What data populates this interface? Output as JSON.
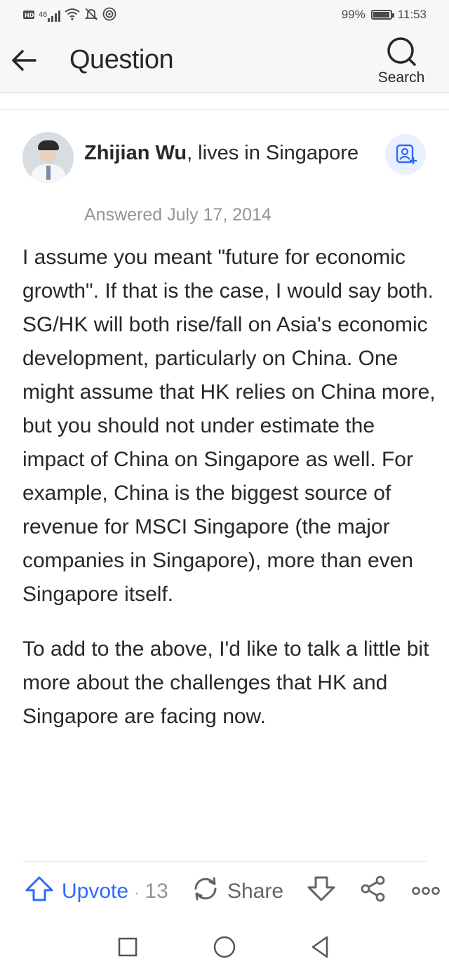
{
  "status_bar": {
    "network": "46",
    "battery_text": "99%",
    "battery_level": 0.99,
    "time": "11:53"
  },
  "header": {
    "title": "Question",
    "search_label": "Search"
  },
  "answer": {
    "author_name": "Zhijian Wu",
    "author_credential": ", lives in Singapore",
    "answered": "Answered July 17, 2014",
    "paragraphs": [
      "I assume you meant \"future for economic growth\". If that is the case, I would say both. SG/HK will both rise/fall on Asia's economic development, particularly on China. One might assume that HK relies on China more, but you should not under estimate the impact of China on Singapore as well. For example, China is the biggest source of revenue for MSCI Singapore (the major companies in Singapore), more than even Singapore itself.",
      "To add to the above, I'd like to talk a little bit more about the challenges that HK and Singapore are facing now."
    ]
  },
  "actions": {
    "upvote_label": "Upvote",
    "upvote_separator": "·",
    "upvote_count": "13",
    "share_label": "Share",
    "more_label": "ooo"
  },
  "colors": {
    "accent": "#2e69ff",
    "text": "#282829",
    "muted": "#939598",
    "header_bg": "#f7f7f8"
  },
  "icons": [
    "hd-icon",
    "signal-icon",
    "wifi-icon",
    "mute-icon",
    "hotspot-icon",
    "battery-icon",
    "back-arrow-icon",
    "search-icon",
    "follow-user-icon",
    "upvote-arrow-icon",
    "share-cycle-icon",
    "downvote-arrow-icon",
    "share-nodes-icon",
    "more-icon",
    "nav-recents-icon",
    "nav-home-icon",
    "nav-back-icon"
  ]
}
